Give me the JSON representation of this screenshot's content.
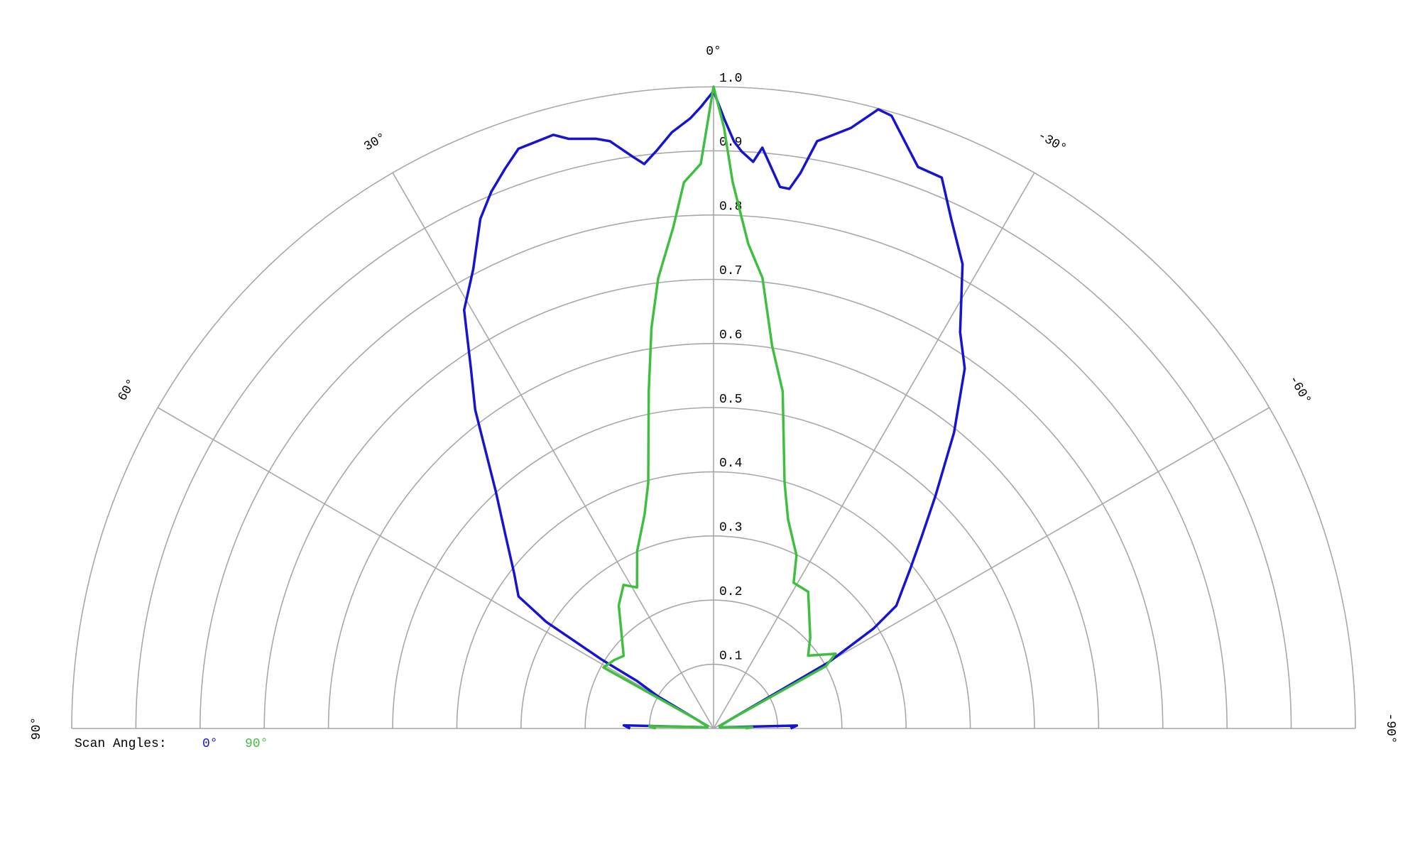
{
  "chart_data": {
    "type": "polar",
    "legend_title": "Scan Angles:",
    "rlim": [
      0,
      1
    ],
    "rticks": [
      0.1,
      0.2,
      0.3,
      0.4,
      0.5,
      0.6,
      0.7,
      0.8,
      0.9,
      {
        "value": 1,
        "label": "1.0"
      }
    ],
    "thetalim": [
      -90,
      90
    ],
    "thetaticks": [
      {
        "value": 90,
        "label": "90°"
      },
      {
        "value": 60,
        "label": "60°"
      },
      {
        "value": 30,
        "label": "30°"
      },
      {
        "value": 0,
        "label": "0°"
      },
      {
        "value": -30,
        "label": "-30°"
      },
      {
        "value": -60,
        "label": "-60°"
      },
      {
        "value": -90,
        "label": "-90°"
      }
    ],
    "grid": true,
    "series": [
      {
        "name": "0°",
        "color": "#1414d2",
        "x": [
          90,
          88,
          80,
          70,
          62,
          60,
          58.2,
          58.4,
          57.5,
          55.9,
          52.2,
          46.8,
          42.6,
          36.8,
          34,
          30.8,
          27.6,
          24.6,
          22.5,
          20.4,
          18.6,
          15.1,
          13.8,
          11.3,
          10,
          8,
          7,
          5.6,
          4,
          2.2,
          1.2,
          0,
          -1,
          -2,
          -2.8,
          -4,
          -4.8,
          -7,
          -8,
          -8.9,
          -10,
          -12.9,
          -14.9,
          -16.2,
          -20,
          -22.5,
          -25,
          -28.2,
          -31.9,
          -34.9,
          -39.1,
          -43.7,
          -47.4,
          -51,
          -56.1,
          -58,
          -60.1,
          -62,
          -70,
          -80,
          -88,
          -90
        ],
        "values": [
          0.13,
          0.14,
          0.01,
          0.01,
          0.03,
          0.1,
          0.14,
          0.203,
          0.309,
          0.367,
          0.393,
          0.446,
          0.501,
          0.62,
          0.676,
          0.759,
          0.808,
          0.873,
          0.905,
          0.931,
          0.953,
          0.958,
          0.946,
          0.937,
          0.929,
          0.899,
          0.886,
          0.905,
          0.931,
          0.951,
          0.968,
          0.993,
          0.95,
          0.915,
          0.9,
          0.885,
          0.908,
          0.85,
          0.849,
          0.876,
          0.929,
          0.96,
          0.998,
          0.994,
          0.931,
          0.929,
          0.876,
          0.821,
          0.727,
          0.684,
          0.594,
          0.5,
          0.44,
          0.394,
          0.343,
          0.294,
          0.207,
          0.03,
          0.01,
          0.01,
          0.13,
          0.12
        ]
      },
      {
        "name": "90°",
        "color": "#3fbf3f",
        "x": [
          90,
          88,
          80,
          70,
          62,
          61,
          55.5,
          51.1,
          37.6,
          32.1,
          28.5,
          23.3,
          17.9,
          14.9,
          10.9,
          8.8,
          7,
          4.6,
          3.1,
          1.3,
          0,
          -1,
          -2,
          -4.1,
          -6.2,
          -8.7,
          -11.6,
          -16.1,
          -19.6,
          -25.6,
          -28.8,
          -34.7,
          -46.7,
          -52.4,
          -58.5,
          -61,
          -62,
          -70,
          -80,
          -88,
          -90
        ],
        "values": [
          0.09,
          0.1,
          0.01,
          0.01,
          0.03,
          0.196,
          0.188,
          0.18,
          0.242,
          0.264,
          0.25,
          0.301,
          0.35,
          0.396,
          0.534,
          0.632,
          0.707,
          0.783,
          0.852,
          0.88,
          1.0,
          0.936,
          0.852,
          0.757,
          0.706,
          0.603,
          0.536,
          0.399,
          0.346,
          0.299,
          0.259,
          0.259,
          0.207,
          0.186,
          0.223,
          0.2,
          0.03,
          0.01,
          0.01,
          0.06,
          0.05
        ]
      }
    ]
  }
}
